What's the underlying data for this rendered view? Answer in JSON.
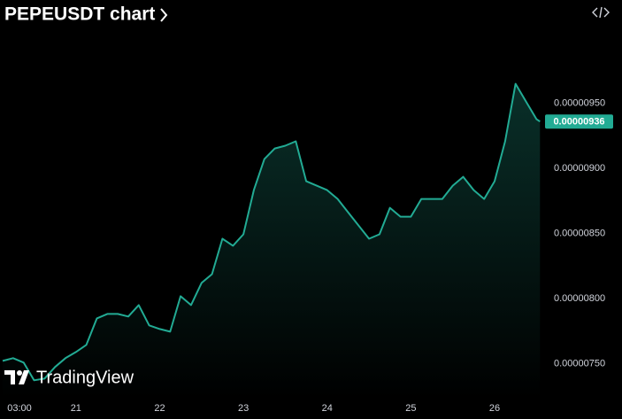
{
  "title": "PEPEUSDT chart",
  "watermark": "TradingView",
  "chart_data": {
    "type": "area",
    "color": "#22ab94",
    "x": [
      3,
      6,
      9,
      12,
      15,
      18,
      21,
      24,
      27,
      30,
      33,
      36,
      39,
      42,
      45,
      48,
      51,
      54,
      57,
      60,
      63,
      66,
      69,
      72,
      75,
      78,
      81,
      84,
      87,
      90,
      93,
      96,
      99,
      102,
      105,
      108,
      111,
      114,
      117,
      120,
      123,
      126,
      129,
      132,
      135,
      138,
      141,
      144,
      147,
      150,
      153,
      156,
      157
    ],
    "values": [
      7.52e-06,
      7.541e-06,
      7.507e-06,
      7.371e-06,
      7.384e-06,
      7.473e-06,
      7.541e-06,
      7.588e-06,
      7.643e-06,
      7.847e-06,
      7.881e-06,
      7.881e-06,
      7.861e-06,
      7.949e-06,
      7.793e-06,
      7.765e-06,
      7.745e-06,
      8.017e-06,
      7.949e-06,
      8.119e-06,
      8.187e-06,
      8.459e-06,
      8.405e-06,
      8.493e-06,
      8.833e-06,
      9.071e-06,
      9.153e-06,
      9.174e-06,
      9.208e-06,
      8.901e-06,
      8.867e-06,
      8.833e-06,
      8.765e-06,
      8.663e-06,
      8.561e-06,
      8.459e-06,
      8.493e-06,
      8.697e-06,
      8.629e-06,
      8.629e-06,
      8.765e-06,
      8.765e-06,
      8.765e-06,
      8.867e-06,
      8.935e-06,
      8.833e-06,
      8.765e-06,
      8.901e-06,
      9.208e-06,
      9.65e-06,
      9.514e-06,
      9.378e-06,
      9.36e-06
    ],
    "xlim": [
      3,
      180
    ],
    "xticks": [
      {
        "value": 3,
        "label": "03:00"
      },
      {
        "value": 24,
        "label": "21"
      },
      {
        "value": 48,
        "label": "22"
      },
      {
        "value": 72,
        "label": "23"
      },
      {
        "value": 96,
        "label": "24"
      },
      {
        "value": 120,
        "label": "25"
      },
      {
        "value": 144,
        "label": "26"
      }
    ],
    "ylim": [
      7.23e-06,
      1.009e-05
    ],
    "yticks": [
      {
        "value": 7.5e-06,
        "label": "0.00000750"
      },
      {
        "value": 8e-06,
        "label": "0.00000800"
      },
      {
        "value": 8.5e-06,
        "label": "0.00000850"
      },
      {
        "value": 9e-06,
        "label": "0.00000900"
      },
      {
        "value": 9.5e-06,
        "label": "0.00000950"
      }
    ],
    "price_label": {
      "value": 9.36e-06,
      "label": "0.00000936"
    },
    "grid": false
  }
}
